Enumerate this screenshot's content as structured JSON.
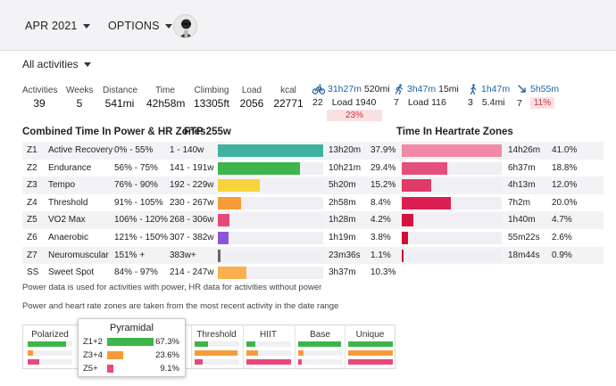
{
  "topbar": {
    "month_label": "APR 2021",
    "options_label": "OPTIONS"
  },
  "filter": {
    "label": "All activities"
  },
  "stats": [
    {
      "label": "Activities",
      "value": "39"
    },
    {
      "label": "Weeks",
      "value": "5"
    },
    {
      "label": "Distance",
      "value": "541mi"
    },
    {
      "label": "Time",
      "value": "42h58m"
    },
    {
      "label": "Climbing",
      "value": "13305ft"
    },
    {
      "label": "Load",
      "value": "2056"
    },
    {
      "label": "kcal",
      "value": "22771"
    }
  ],
  "sports": {
    "ride": {
      "count": "22",
      "time": "31h27m",
      "distance": "520mi",
      "load": "Load 1940",
      "percent": "23%"
    },
    "run": {
      "count": "7",
      "time": "3h47m",
      "distance": "15mi",
      "load": "Load 116"
    },
    "walk": {
      "count": "3",
      "time": "1h47m",
      "distance": "5.4mi"
    },
    "other": {
      "count": "7",
      "time": "5h55m",
      "percent": "11%"
    }
  },
  "headings": {
    "power": "Combined Time In Power & HR Zones",
    "ftp": "FTP 255w",
    "hr": "Time In Heartrate Zones"
  },
  "power_zones": [
    {
      "id": "Z1",
      "name": "Active Recovery",
      "pct": "0% - 55%",
      "watts": "1 - 140w",
      "time": "13h20m",
      "share": "37.9%",
      "fraction": 0.379,
      "color": "#3fb3a0"
    },
    {
      "id": "Z2",
      "name": "Endurance",
      "pct": "56% - 75%",
      "watts": "141 - 191w",
      "time": "10h21m",
      "share": "29.4%",
      "fraction": 0.294,
      "color": "#3db54a"
    },
    {
      "id": "Z3",
      "name": "Tempo",
      "pct": "76% - 90%",
      "watts": "192 - 229w",
      "time": "5h20m",
      "share": "15.2%",
      "fraction": 0.152,
      "color": "#f6d33c"
    },
    {
      "id": "Z4",
      "name": "Threshold",
      "pct": "91% - 105%",
      "watts": "230 - 267w",
      "time": "2h58m",
      "share": "8.4%",
      "fraction": 0.084,
      "color": "#f59b3a"
    },
    {
      "id": "Z5",
      "name": "VO2 Max",
      "pct": "106% - 120%",
      "watts": "268 - 306w",
      "time": "1h28m",
      "share": "4.2%",
      "fraction": 0.042,
      "color": "#e8487a"
    },
    {
      "id": "Z6",
      "name": "Anaerobic",
      "pct": "121% - 150%",
      "watts": "307 - 382w",
      "time": "1h19m",
      "share": "3.8%",
      "fraction": 0.038,
      "color": "#8a55d6"
    },
    {
      "id": "Z7",
      "name": "Neuromuscular",
      "pct": "151% +",
      "watts": "383w+",
      "time": "23m36s",
      "share": "1.1%",
      "fraction": 0.011,
      "color": "#666666"
    },
    {
      "id": "SS",
      "name": "Sweet Spot",
      "pct": "84% - 97%",
      "watts": "214 - 247w",
      "time": "3h37m",
      "share": "10.3%",
      "fraction": 0.103,
      "color": "#fbb04f"
    }
  ],
  "hr_zones": [
    {
      "time": "14h26m",
      "share": "41.0%",
      "fraction": 0.41,
      "color": "#f08aa8"
    },
    {
      "time": "6h37m",
      "share": "18.8%",
      "fraction": 0.188,
      "color": "#e54f7c"
    },
    {
      "time": "4h13m",
      "share": "12.0%",
      "fraction": 0.12,
      "color": "#e03a68"
    },
    {
      "time": "7h2m",
      "share": "20.0%",
      "fraction": 0.2,
      "color": "#db1f52"
    },
    {
      "time": "1h40m",
      "share": "4.7%",
      "fraction": 0.047,
      "color": "#d6123f"
    },
    {
      "time": "55m22s",
      "share": "2.6%",
      "fraction": 0.026,
      "color": "#d00f38"
    },
    {
      "time": "18m44s",
      "share": "0.9%",
      "fraction": 0.009,
      "color": "#c80c32"
    }
  ],
  "notes": {
    "line1": "Power data is used for activities with power, HR data for activities without power",
    "line2": "Power and heart rate zones are taken from the most recent activity in the date range"
  },
  "models": [
    {
      "name": "Polarized",
      "bars": [
        0.85,
        0.12,
        0.25
      ]
    },
    {
      "name": "Threshold",
      "bars": [
        0.3,
        0.95,
        0.18
      ]
    },
    {
      "name": "HIIT",
      "bars": [
        0.2,
        0.25,
        1.0
      ]
    },
    {
      "name": "Base",
      "bars": [
        0.95,
        0.12,
        0.08
      ]
    },
    {
      "name": "Unique",
      "bars": [
        1.0,
        1.0,
        1.0
      ]
    }
  ],
  "pyramidal": {
    "title": "Pyramidal",
    "rows": [
      {
        "label": "Z1+2",
        "value": "67.3%",
        "fraction": 0.673,
        "color": "#3db54a"
      },
      {
        "label": "Z3+4",
        "value": "23.6%",
        "fraction": 0.236,
        "color": "#f59b3a"
      },
      {
        "label": "Z5+",
        "value": "9.1%",
        "fraction": 0.091,
        "color": "#e8487a"
      }
    ]
  },
  "colors": {
    "green": "#3db54a",
    "orange": "#f59b3a",
    "pink": "#e8487a"
  }
}
